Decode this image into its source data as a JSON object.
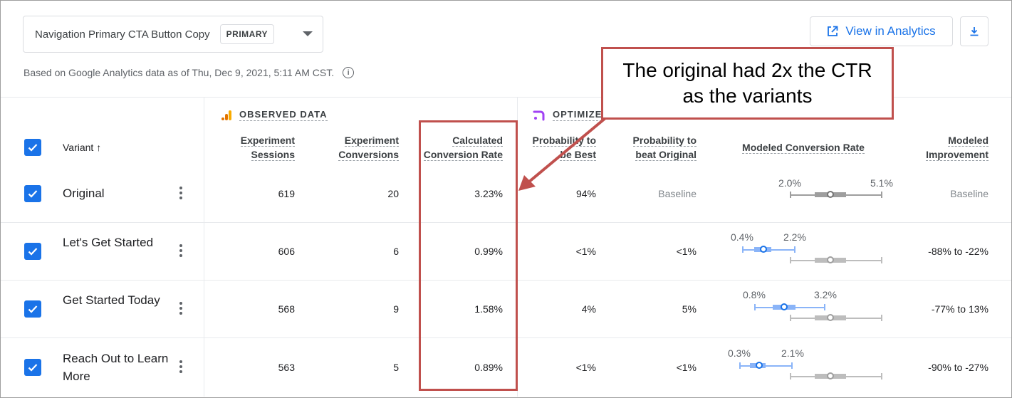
{
  "experiment": {
    "name": "Navigation Primary CTA Button Copy",
    "badge": "PRIMARY"
  },
  "data_note": "Based on Google Analytics data as of Thu, Dec 9, 2021, 5:11 AM CST.",
  "actions": {
    "view_analytics": "View in Analytics"
  },
  "groups": {
    "observed": "OBSERVED DATA",
    "optimize": "OPTIMIZE"
  },
  "columns": {
    "variant": "Variant",
    "sessions": [
      "Experiment",
      "Sessions"
    ],
    "conversions": [
      "Experiment",
      "Conversions"
    ],
    "conv_rate": [
      "Calculated",
      "Conversion Rate"
    ],
    "prob_best": [
      "Probability to",
      "be Best"
    ],
    "prob_beat": [
      "Probability to",
      "beat Original"
    ],
    "modeled_rate": "Modeled Conversion Rate",
    "modeled_improvement": [
      "Modeled",
      "Improvement"
    ]
  },
  "rows": [
    {
      "name": "Original",
      "sessions": "619",
      "conversions": "20",
      "rate": "3.23%",
      "prob_best": "94%",
      "prob_beat": "Baseline",
      "ci_low": "2.0%",
      "ci_high": "5.1%",
      "improvement": "Baseline"
    },
    {
      "name": "Let's Get Started",
      "sessions": "606",
      "conversions": "6",
      "rate": "0.99%",
      "prob_best": "<1%",
      "prob_beat": "<1%",
      "ci_low": "0.4%",
      "ci_high": "2.2%",
      "improvement": "-88% to -22%"
    },
    {
      "name": "Get Started Today",
      "sessions": "568",
      "conversions": "9",
      "rate": "1.58%",
      "prob_best": "4%",
      "prob_beat": "5%",
      "ci_low": "0.8%",
      "ci_high": "3.2%",
      "improvement": "-77% to 13%"
    },
    {
      "name": "Reach Out to Learn More",
      "sessions": "563",
      "conversions": "5",
      "rate": "0.89%",
      "prob_best": "<1%",
      "prob_beat": "<1%",
      "ci_low": "0.3%",
      "ci_high": "2.1%",
      "improvement": "-90% to -27%"
    }
  ],
  "annotation": {
    "text": "The original had 2x the CTR as the variants",
    "color": "#c0504d"
  },
  "colors": {
    "accent": "#1a73e8",
    "ga_orange": "#f9ab00",
    "optimize_purple": "#a142f4"
  }
}
